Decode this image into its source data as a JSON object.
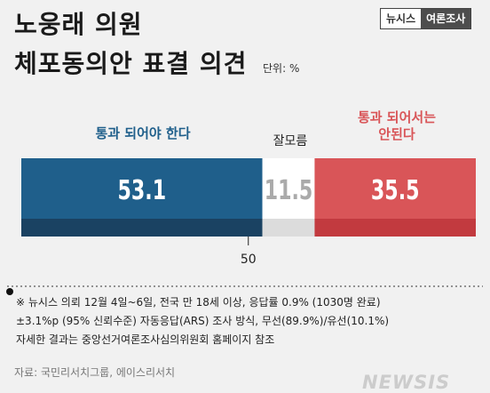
{
  "title": {
    "line1": "노웅래 의원",
    "line2": "체포동의안 표결 의견"
  },
  "unit": "단위: %",
  "brand": {
    "left": "뉴시스",
    "right": "여론조사"
  },
  "chart_data": {
    "type": "bar",
    "orientation": "horizontal-stacked",
    "categories": [
      "통과 되어야 한다",
      "잘모름",
      "통과 되어서는 안된다"
    ],
    "values": [
      53.1,
      11.5,
      35.5
    ],
    "value_labels": [
      "53.1",
      "11.5",
      "35.5"
    ],
    "label_lines": [
      [
        "통과 되어야 한다"
      ],
      [
        "잘모름"
      ],
      [
        "통과 되어서는",
        "안된다"
      ]
    ],
    "colors": [
      "#1f5f8b",
      "#ffffff",
      "#d95558"
    ],
    "dark_colors": [
      "#1a4262",
      "#dcdcdc",
      "#c23a3f"
    ],
    "label_colors": [
      "#1f5f8b",
      "#222222",
      "#d95558"
    ],
    "value_text_colors": [
      "#ffffff",
      "#aaaaaa",
      "#ffffff"
    ],
    "midpoint_label": "50",
    "midpoint": 50,
    "xlim": [
      0,
      100.1
    ]
  },
  "footnotes": [
    "※ 뉴시스 의뢰 12월 4일~6일, 전국 만 18세 이상, 응답률 0.9% (1030명 완료)",
    "±3.1%p (95% 신뢰수준) 자동응답(ARS) 조사 방식, 무선(89.9%)/유선(10.1%)",
    "자세한 결과는 중앙선거여론조사심의위원회 홈페이지 참조"
  ],
  "source": "자료: 국민리서치그룹, 에이스리서치",
  "watermark": "NEWSIS"
}
